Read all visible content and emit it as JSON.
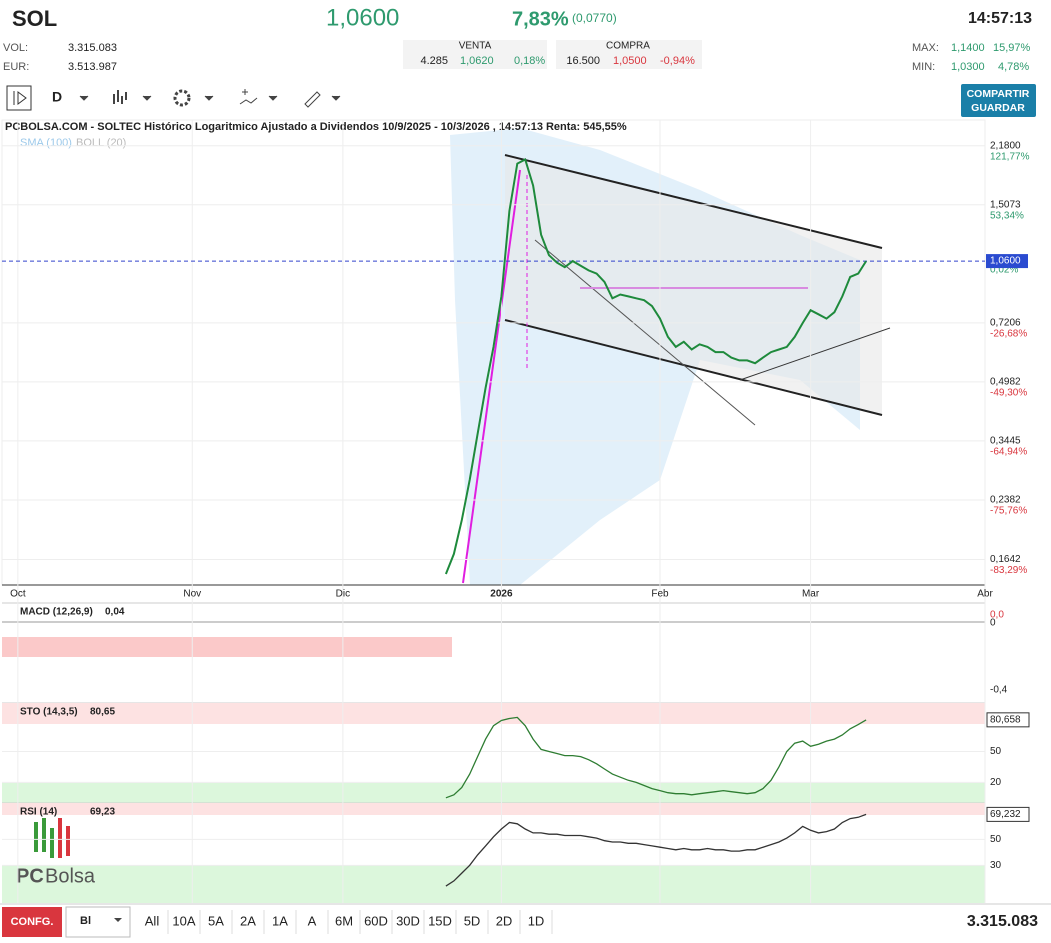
{
  "header": {
    "symbol": "SOL",
    "price": "1,0600",
    "change_pct": "7,83%",
    "change_abs": "(0,0770)",
    "time": "14:57:13",
    "vol_label": "VOL:",
    "vol": "3.315.083",
    "eur_label": "EUR:",
    "eur": "3.513.987",
    "venta": {
      "title": "VENTA",
      "qty": "4.285",
      "price": "1,0620",
      "pct": "0,18%"
    },
    "compra": {
      "title": "COMPRA",
      "qty": "16.500",
      "price": "1,0500",
      "pct": "-0,94%"
    },
    "max_label": "MAX:",
    "max": "1,1400",
    "max_pct": "15,97%",
    "min_label": "MIN:",
    "min": "1,0300",
    "min_pct": "4,78%"
  },
  "toolbar": {
    "interval": "D",
    "share": [
      "COMPARTIR",
      "GUARDAR"
    ]
  },
  "chart_data": [
    {
      "type": "line",
      "title": "PCBOLSA.COM - SOLTEC Histórico Logaritmico Ajustado a Dividendos 10/9/2025 - 10/3/2026 , 14:57:13 Renta: 545,55%",
      "legend": [
        "SMA (100)",
        "BOLL (20)"
      ],
      "color": "#1e8a3c",
      "log_scale": true,
      "grid": true,
      "x": [
        54,
        55,
        56,
        57,
        58,
        59,
        60,
        61,
        62,
        63,
        64,
        65,
        66,
        67,
        68,
        69,
        70,
        71,
        72,
        73,
        74,
        75,
        76,
        77,
        78,
        79,
        80,
        81,
        82,
        83,
        84,
        85,
        86,
        87,
        88,
        89,
        90,
        91,
        92,
        93,
        94,
        95,
        96,
        97,
        98,
        99,
        100,
        101,
        102,
        103,
        104,
        105,
        106,
        107
      ],
      "values": [
        0.15,
        0.17,
        0.21,
        0.27,
        0.36,
        0.48,
        0.62,
        0.85,
        1.45,
        1.95,
        2.0,
        1.7,
        1.25,
        1.1,
        1.05,
        1.02,
        1.06,
        1.03,
        1.0,
        0.98,
        0.93,
        0.84,
        0.86,
        0.85,
        0.84,
        0.83,
        0.8,
        0.74,
        0.66,
        0.62,
        0.64,
        0.61,
        0.63,
        0.62,
        0.6,
        0.6,
        0.58,
        0.57,
        0.57,
        0.56,
        0.58,
        0.6,
        0.61,
        0.62,
        0.66,
        0.72,
        0.78,
        0.76,
        0.74,
        0.77,
        0.85,
        0.96,
        0.98,
        1.06
      ],
      "xlim": [
        -2,
        122
      ],
      "xticks": [
        {
          "value": 0,
          "label": "Oct"
        },
        {
          "value": 22,
          "label": "Nov"
        },
        {
          "value": 41,
          "label": "Dic"
        },
        {
          "value": 61,
          "label": "2026"
        },
        {
          "value": 81,
          "label": "Feb"
        },
        {
          "value": 100,
          "label": "Mar"
        },
        {
          "value": 122,
          "label": "Abr"
        }
      ],
      "ylim": [
        0.14,
        2.56
      ],
      "yticks": [
        {
          "value": 2.18,
          "label": "2,1800"
        },
        {
          "value": 1.5073,
          "label": "1,5073"
        },
        {
          "value": 0.7206,
          "label": "0,7206"
        },
        {
          "value": 0.4982,
          "label": "0,4982"
        },
        {
          "value": 0.3445,
          "label": "0,3445"
        },
        {
          "value": 0.2382,
          "label": "0,2382"
        },
        {
          "value": 0.1642,
          "label": "0,1642"
        }
      ],
      "ytick_changes": [
        "121,77%",
        "53,34%",
        "-26,68%",
        "-49,30%",
        "-64,94%",
        "-75,76%",
        "-83,29%"
      ],
      "last": {
        "value": 1.06,
        "label": "1,0600",
        "pct": "0,02%"
      }
    },
    {
      "type": "line",
      "title": "STO (14,3,5)",
      "current": "80,65",
      "color": "#2e7d32",
      "x": [
        54,
        55,
        56,
        57,
        58,
        59,
        60,
        61,
        62,
        63,
        64,
        65,
        66,
        67,
        68,
        69,
        70,
        71,
        72,
        73,
        74,
        75,
        76,
        77,
        78,
        79,
        80,
        81,
        82,
        83,
        84,
        85,
        86,
        87,
        88,
        89,
        90,
        91,
        92,
        93,
        94,
        95,
        96,
        97,
        98,
        99,
        100,
        101,
        102,
        103,
        104,
        105,
        106,
        107
      ],
      "values": [
        5,
        8,
        15,
        28,
        45,
        62,
        75,
        80,
        82,
        83,
        75,
        62,
        52,
        50,
        48,
        46,
        46,
        45,
        42,
        38,
        33,
        28,
        25,
        22,
        20,
        17,
        14,
        12,
        10,
        9,
        9,
        8,
        9,
        10,
        11,
        12,
        11,
        10,
        9,
        10,
        14,
        22,
        35,
        50,
        58,
        60,
        55,
        57,
        60,
        62,
        66,
        72,
        76,
        80.65
      ],
      "xlim": [
        -2,
        122
      ],
      "ylim": [
        0,
        97
      ],
      "yticks": [
        {
          "value": 80.658,
          "label": "80,658"
        },
        50,
        20
      ]
    },
    {
      "type": "line",
      "title": "RSI (14)",
      "current": "69,23",
      "color": "#333333",
      "x": [
        54,
        55,
        56,
        57,
        58,
        59,
        60,
        61,
        62,
        63,
        64,
        65,
        66,
        67,
        68,
        69,
        70,
        71,
        72,
        73,
        74,
        75,
        76,
        77,
        78,
        79,
        80,
        81,
        82,
        83,
        84,
        85,
        86,
        87,
        88,
        89,
        90,
        91,
        92,
        93,
        94,
        95,
        96,
        97,
        98,
        99,
        100,
        101,
        102,
        103,
        104,
        105,
        106,
        107
      ],
      "values": [
        14,
        18,
        24,
        30,
        38,
        45,
        52,
        58,
        63,
        62,
        58,
        55,
        55,
        54,
        54,
        53,
        53,
        53,
        52,
        51,
        49,
        48,
        48,
        47,
        47,
        46,
        45,
        44,
        43,
        42,
        43,
        42,
        42,
        43,
        42,
        42,
        41,
        41,
        42,
        42,
        44,
        46,
        48,
        51,
        55,
        60,
        57,
        55,
        56,
        58,
        63,
        66,
        67,
        69.23
      ],
      "xlim": [
        -2,
        122
      ],
      "ylim": [
        1,
        78
      ],
      "yticks": [
        {
          "value": 69.232,
          "label": "69,232"
        },
        50,
        30
      ]
    }
  ],
  "macd": {
    "title": "MACD (12,26,9)",
    "current": "0,04",
    "ticks": [
      "0,0",
      "0",
      "-0,4"
    ]
  },
  "logo": {
    "pc": "PC",
    "bolsa": "Bolsa"
  },
  "bottom": {
    "config": "CONFG.",
    "select": "Bl",
    "ranges": [
      "All",
      "10A",
      "5A",
      "2A",
      "1A",
      "A",
      "6M",
      "60D",
      "30D",
      "15D",
      "5D",
      "2D",
      "1D"
    ],
    "volume": "3.315.083"
  }
}
